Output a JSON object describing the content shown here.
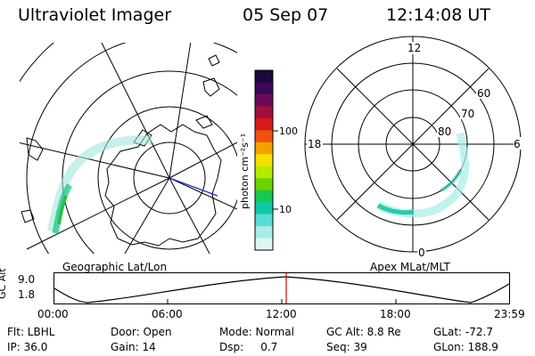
{
  "header": {
    "title": "Ultraviolet Imager",
    "date": "05 Sep 07",
    "time": "12:14:08 UT"
  },
  "geo_panel": {
    "label": "Geographic Lat/Lon"
  },
  "polar_panel": {
    "label": "Apex MLat/MLT",
    "mlt_labels": {
      "top": "12",
      "left": "18",
      "right": "6",
      "bottom": "0"
    },
    "lat_labels": [
      "60",
      "70",
      "80"
    ]
  },
  "colorbar": {
    "unit_label": "photon cm⁻²s⁻¹",
    "ticks": [
      "100",
      "10"
    ],
    "colors": [
      "#1a0b3c",
      "#3a0a56",
      "#6a0a5a",
      "#a0103a",
      "#d81a1a",
      "#f05010",
      "#f5a000",
      "#f5e000",
      "#b8ea00",
      "#6ad400",
      "#18c850",
      "#10c8a8",
      "#58dcd8",
      "#a8ece8",
      "#dcf6f4"
    ]
  },
  "altitude_plot": {
    "ylabel": "GC Alt",
    "y_ticks": [
      "9.0",
      "1.8"
    ],
    "x_ticks": [
      "00:00",
      "06:00",
      "12:00",
      "18:00",
      "23:59"
    ],
    "current_time_color": "#e00000"
  },
  "info": {
    "filter": "Flt: LBHL",
    "door": "Door: Open",
    "mode": "Mode: Normal",
    "gc_alt": "GC Alt: 8.8 Re",
    "glat": "GLat: -72.7",
    "ip": "IP: 36.0",
    "gain": "Gain: 14",
    "dsp": "Dsp:     0.7",
    "seq": "Seq: 39",
    "glon": "GLon: 188.9"
  }
}
